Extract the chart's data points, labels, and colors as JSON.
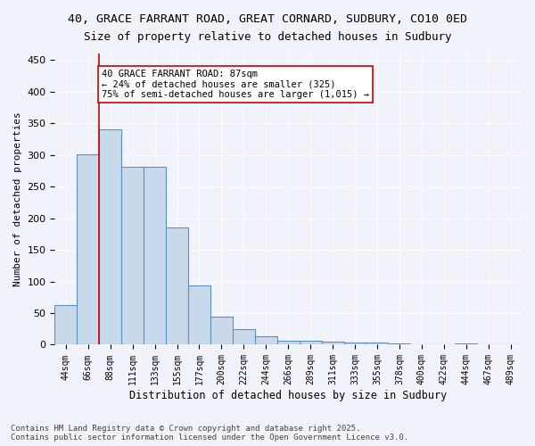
{
  "title_line1": "40, GRACE FARRANT ROAD, GREAT CORNARD, SUDBURY, CO10 0ED",
  "title_line2": "Size of property relative to detached houses in Sudbury",
  "xlabel": "Distribution of detached houses by size in Sudbury",
  "ylabel": "Number of detached properties",
  "bar_labels": [
    "44sqm",
    "66sqm",
    "88sqm",
    "111sqm",
    "133sqm",
    "155sqm",
    "177sqm",
    "200sqm",
    "222sqm",
    "244sqm",
    "266sqm",
    "289sqm",
    "311sqm",
    "333sqm",
    "355sqm",
    "378sqm",
    "400sqm",
    "422sqm",
    "444sqm",
    "467sqm",
    "489sqm"
  ],
  "bar_values": [
    63,
    301,
    340,
    281,
    281,
    185,
    93,
    45,
    25,
    14,
    7,
    6,
    5,
    4,
    3,
    2,
    1,
    0,
    2,
    0,
    1
  ],
  "bar_color": "#c9d9ec",
  "bar_edge_color": "#5b8fc9",
  "vline_x": 2,
  "vline_color": "#cc0000",
  "annotation_text": "40 GRACE FARRANT ROAD: 87sqm\n← 24% of detached houses are smaller (325)\n75% of semi-detached houses are larger (1,015) →",
  "annotation_box_color": "#ffffff",
  "annotation_box_edge": "#cc0000",
  "ylim": [
    0,
    460
  ],
  "yticks": [
    0,
    50,
    100,
    150,
    200,
    250,
    300,
    350,
    400,
    450
  ],
  "footer_line1": "Contains HM Land Registry data © Crown copyright and database right 2025.",
  "footer_line2": "Contains public sector information licensed under the Open Government Licence v3.0.",
  "bg_color": "#f0f4fa",
  "grid_color": "#ffffff"
}
